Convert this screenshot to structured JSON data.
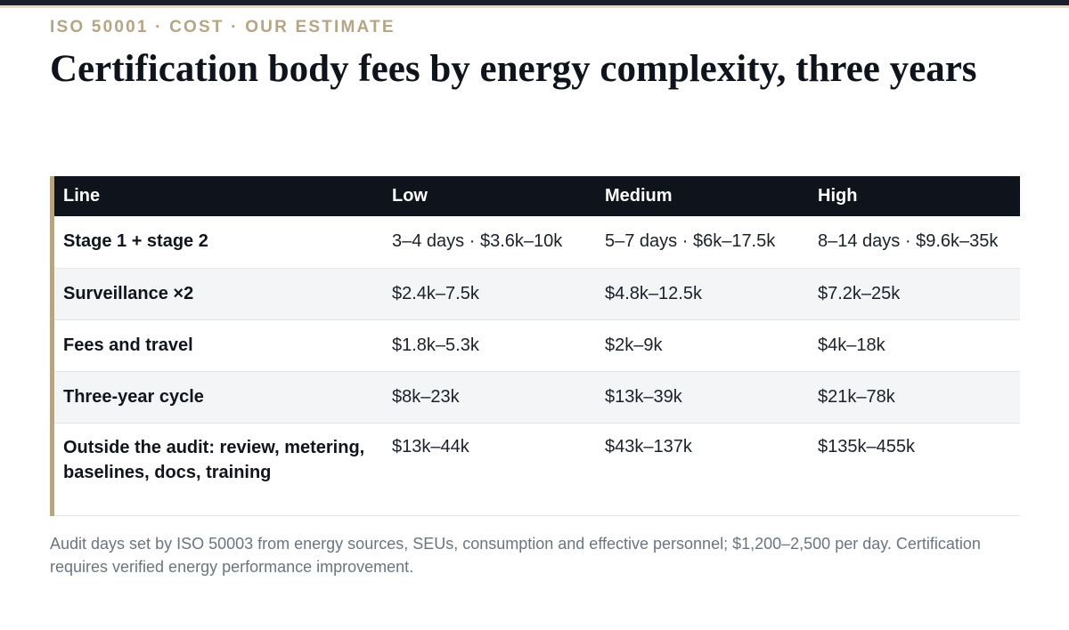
{
  "eyebrow": "ISO 50001 · COST · OUR ESTIMATE",
  "title": "Certification body fees by energy complexity, three years",
  "table": {
    "headers": [
      "Line",
      "Low",
      "Medium",
      "High"
    ],
    "rows": [
      {
        "label": "Stage 1 + stage 2",
        "low": "3–4 days · $3.6k–10k",
        "medium": "5–7 days · $6k–17.5k",
        "high": "8–14 days · $9.6k–35k"
      },
      {
        "label": "Surveillance ×2",
        "low": "$2.4k–7.5k",
        "medium": "$4.8k–12.5k",
        "high": "$7.2k–25k"
      },
      {
        "label": "Fees and travel",
        "low": "$1.8k–5.3k",
        "medium": "$2k–9k",
        "high": "$4k–18k"
      },
      {
        "label": "Three-year cycle",
        "low": "$8k–23k",
        "medium": "$13k–39k",
        "high": "$21k–78k"
      },
      {
        "label": "Outside the audit: review, metering, baselines, docs, training",
        "low": "$13k–44k",
        "medium": "$43k–137k",
        "high": "$135k–455k"
      }
    ]
  },
  "note": "Audit days set by ISO 50003 from energy sources, SEUs, consumption and effective personnel; $1,200–2,500 per day. Certification requires verified energy performance improvement.",
  "colors": {
    "accent": "#b5a582",
    "header_bg": "#0f141c",
    "alt_row_bg": "#f3f5f7"
  }
}
